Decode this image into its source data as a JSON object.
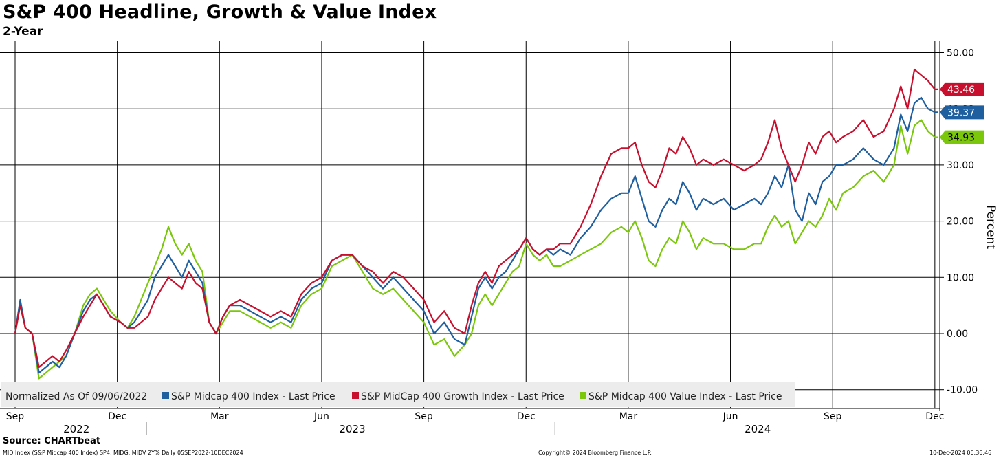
{
  "title": "S&P 400 Headline, Growth & Value Index",
  "subtitle": "2-Year",
  "source": "Source: CHARTbeat",
  "footer": {
    "left": "MID Index (S&P Midcap 400 Index) SP4, MIDG, MIDV 2Y%  Daily 05SEP2022-10DEC2024",
    "center": "Copyright© 2024 Bloomberg Finance L.P.",
    "right": "10-Dec-2024 06:36:46"
  },
  "chart_data": {
    "type": "line",
    "title": "S&P 400 Headline, Growth & Value Index",
    "subtitle": "2-Year",
    "ylabel": "Percent",
    "ylim": [
      -10,
      50
    ],
    "yticks": [
      -10,
      0,
      10,
      20,
      30,
      40,
      50
    ],
    "ytick_labels": [
      "-10.00",
      "0.00",
      "10.00",
      "20.00",
      "30.00",
      "40.00",
      "50.00"
    ],
    "xlim": [
      0,
      27.2
    ],
    "x_unit": "months since 2022-09-01",
    "x_ticks": [
      {
        "pos": 0,
        "label": "Sep"
      },
      {
        "pos": 3,
        "label": "Dec"
      },
      {
        "pos": 6,
        "label": "Mar"
      },
      {
        "pos": 9,
        "label": "Jun"
      },
      {
        "pos": 12,
        "label": "Sep"
      },
      {
        "pos": 15,
        "label": "Dec"
      },
      {
        "pos": 18,
        "label": "Mar"
      },
      {
        "pos": 21,
        "label": "Jun"
      },
      {
        "pos": 24,
        "label": "Sep"
      },
      {
        "pos": 27,
        "label": "Dec"
      }
    ],
    "year_labels": [
      {
        "pos": 1.8,
        "label": "2022"
      },
      {
        "pos": 9.9,
        "label": "2023"
      },
      {
        "pos": 21.8,
        "label": "2024"
      }
    ],
    "year_dividers": [
      3.85,
      15.85
    ],
    "grid": true,
    "legend_position": "bottom-left",
    "legend_note": "Normalized As Of 09/06/2022",
    "series": [
      {
        "name": "S&P Midcap 400 Index - Last Price",
        "color": "#1f5fa0",
        "last_value": "39.37",
        "x": [
          0,
          0.15,
          0.3,
          0.5,
          0.7,
          0.9,
          1.1,
          1.3,
          1.5,
          1.75,
          2.0,
          2.2,
          2.4,
          2.6,
          2.8,
          3.1,
          3.3,
          3.5,
          3.7,
          3.9,
          4.1,
          4.3,
          4.5,
          4.7,
          4.9,
          5.1,
          5.3,
          5.5,
          5.7,
          5.9,
          6.1,
          6.3,
          6.6,
          6.9,
          7.2,
          7.5,
          7.8,
          8.1,
          8.4,
          8.7,
          9.0,
          9.3,
          9.6,
          9.9,
          10.2,
          10.5,
          10.8,
          11.1,
          11.4,
          11.7,
          12.0,
          12.3,
          12.6,
          12.9,
          13.2,
          13.4,
          13.6,
          13.8,
          14.0,
          14.2,
          14.4,
          14.6,
          14.8,
          15.0,
          15.2,
          15.4,
          15.6,
          15.8,
          16.0,
          16.3,
          16.6,
          16.9,
          17.2,
          17.5,
          17.8,
          18.0,
          18.2,
          18.4,
          18.6,
          18.8,
          19.0,
          19.2,
          19.4,
          19.6,
          19.8,
          20.0,
          20.2,
          20.5,
          20.8,
          21.1,
          21.4,
          21.7,
          21.9,
          22.1,
          22.3,
          22.5,
          22.7,
          22.9,
          23.1,
          23.3,
          23.5,
          23.7,
          23.9,
          24.1,
          24.3,
          24.6,
          24.9,
          25.2,
          25.5,
          25.8,
          26.0,
          26.2,
          26.4,
          26.6,
          26.8,
          27.0,
          27.1
        ],
        "values": [
          0,
          6,
          1,
          0,
          -7,
          -6,
          -5,
          -6,
          -4,
          0,
          4,
          6,
          7,
          5,
          3,
          2,
          1,
          2,
          4,
          6,
          10,
          12,
          14,
          12,
          10,
          13,
          11,
          9,
          2,
          0,
          3,
          5,
          5,
          4,
          3,
          2,
          3,
          2,
          6,
          8,
          9,
          13,
          14,
          14,
          12,
          10,
          8,
          10,
          8,
          6,
          4,
          0,
          2,
          -1,
          -2,
          3,
          8,
          10,
          8,
          10,
          11,
          13,
          15,
          17,
          15,
          14,
          15,
          14,
          15,
          14,
          17,
          19,
          22,
          24,
          25,
          25,
          28,
          24,
          20,
          19,
          22,
          24,
          23,
          27,
          25,
          22,
          24,
          23,
          24,
          22,
          23,
          24,
          23,
          25,
          28,
          26,
          30,
          22,
          20,
          25,
          23,
          27,
          28,
          30,
          30,
          31,
          33,
          31,
          30,
          33,
          39,
          36,
          41,
          42,
          40,
          39.37,
          39.37
        ]
      },
      {
        "name": "S&P MidCap 400 Growth Index - Last Price",
        "color": "#c8102e",
        "last_value": "43.46",
        "x": [
          0,
          0.15,
          0.3,
          0.5,
          0.7,
          0.9,
          1.1,
          1.3,
          1.5,
          1.75,
          2.0,
          2.2,
          2.4,
          2.6,
          2.8,
          3.1,
          3.3,
          3.5,
          3.7,
          3.9,
          4.1,
          4.3,
          4.5,
          4.7,
          4.9,
          5.1,
          5.3,
          5.5,
          5.7,
          5.9,
          6.1,
          6.3,
          6.6,
          6.9,
          7.2,
          7.5,
          7.8,
          8.1,
          8.4,
          8.7,
          9.0,
          9.3,
          9.6,
          9.9,
          10.2,
          10.5,
          10.8,
          11.1,
          11.4,
          11.7,
          12.0,
          12.3,
          12.6,
          12.9,
          13.2,
          13.4,
          13.6,
          13.8,
          14.0,
          14.2,
          14.4,
          14.6,
          14.8,
          15.0,
          15.2,
          15.4,
          15.6,
          15.8,
          16.0,
          16.3,
          16.6,
          16.9,
          17.2,
          17.5,
          17.8,
          18.0,
          18.2,
          18.4,
          18.6,
          18.8,
          19.0,
          19.2,
          19.4,
          19.6,
          19.8,
          20.0,
          20.2,
          20.5,
          20.8,
          21.1,
          21.4,
          21.7,
          21.9,
          22.1,
          22.3,
          22.5,
          22.7,
          22.9,
          23.1,
          23.3,
          23.5,
          23.7,
          23.9,
          24.1,
          24.3,
          24.6,
          24.9,
          25.2,
          25.5,
          25.8,
          26.0,
          26.2,
          26.4,
          26.6,
          26.8,
          27.0,
          27.1
        ],
        "values": [
          0,
          5,
          1,
          0,
          -6,
          -5,
          -4,
          -5,
          -3,
          0,
          3,
          5,
          7,
          5,
          3,
          2,
          1,
          1,
          2,
          3,
          6,
          8,
          10,
          9,
          8,
          11,
          9,
          8,
          2,
          0,
          3,
          5,
          6,
          5,
          4,
          3,
          4,
          3,
          7,
          9,
          10,
          13,
          14,
          14,
          12,
          11,
          9,
          11,
          10,
          8,
          6,
          2,
          4,
          1,
          0,
          5,
          9,
          11,
          9,
          12,
          13,
          14,
          15,
          17,
          15,
          14,
          15,
          15,
          16,
          16,
          19,
          23,
          28,
          32,
          33,
          33,
          34,
          30,
          27,
          26,
          29,
          33,
          32,
          35,
          33,
          30,
          31,
          30,
          31,
          30,
          29,
          30,
          31,
          34,
          38,
          33,
          30,
          27,
          30,
          34,
          32,
          35,
          36,
          34,
          35,
          36,
          38,
          35,
          36,
          40,
          44,
          40,
          47,
          46,
          45,
          43.46,
          43.46
        ]
      },
      {
        "name": "S&P Midcap 400 Value Index - Last Price",
        "color": "#7ac70c",
        "last_value": "34.93",
        "x": [
          0,
          0.15,
          0.3,
          0.5,
          0.7,
          0.9,
          1.1,
          1.3,
          1.5,
          1.75,
          2.0,
          2.2,
          2.4,
          2.6,
          2.8,
          3.1,
          3.3,
          3.5,
          3.7,
          3.9,
          4.1,
          4.3,
          4.5,
          4.7,
          4.9,
          5.1,
          5.3,
          5.5,
          5.7,
          5.9,
          6.1,
          6.3,
          6.6,
          6.9,
          7.2,
          7.5,
          7.8,
          8.1,
          8.4,
          8.7,
          9.0,
          9.3,
          9.6,
          9.9,
          10.2,
          10.5,
          10.8,
          11.1,
          11.4,
          11.7,
          12.0,
          12.3,
          12.6,
          12.9,
          13.2,
          13.4,
          13.6,
          13.8,
          14.0,
          14.2,
          14.4,
          14.6,
          14.8,
          15.0,
          15.2,
          15.4,
          15.6,
          15.8,
          16.0,
          16.3,
          16.6,
          16.9,
          17.2,
          17.5,
          17.8,
          18.0,
          18.2,
          18.4,
          18.6,
          18.8,
          19.0,
          19.2,
          19.4,
          19.6,
          19.8,
          20.0,
          20.2,
          20.5,
          20.8,
          21.1,
          21.4,
          21.7,
          21.9,
          22.1,
          22.3,
          22.5,
          22.7,
          22.9,
          23.1,
          23.3,
          23.5,
          23.7,
          23.9,
          24.1,
          24.3,
          24.6,
          24.9,
          25.2,
          25.5,
          25.8,
          26.0,
          26.2,
          26.4,
          26.6,
          26.8,
          27.0,
          27.1
        ],
        "values": [
          0,
          5,
          1,
          0,
          -8,
          -7,
          -6,
          -5,
          -4,
          0,
          5,
          7,
          8,
          6,
          4,
          2,
          1,
          3,
          6,
          9,
          12,
          15,
          19,
          16,
          14,
          16,
          13,
          11,
          2,
          0,
          2,
          4,
          4,
          3,
          2,
          1,
          2,
          1,
          5,
          7,
          8,
          12,
          13,
          14,
          11,
          8,
          7,
          8,
          6,
          4,
          2,
          -2,
          -1,
          -4,
          -2,
          0,
          5,
          7,
          5,
          7,
          9,
          11,
          12,
          16,
          14,
          13,
          14,
          12,
          12,
          13,
          14,
          15,
          16,
          18,
          19,
          18,
          20,
          17,
          13,
          12,
          15,
          17,
          16,
          20,
          18,
          15,
          17,
          16,
          16,
          15,
          15,
          16,
          16,
          19,
          21,
          19,
          20,
          16,
          18,
          20,
          19,
          21,
          24,
          22,
          25,
          26,
          28,
          29,
          27,
          30,
          37,
          32,
          37,
          38,
          36,
          34.93,
          34.93
        ]
      }
    ]
  }
}
